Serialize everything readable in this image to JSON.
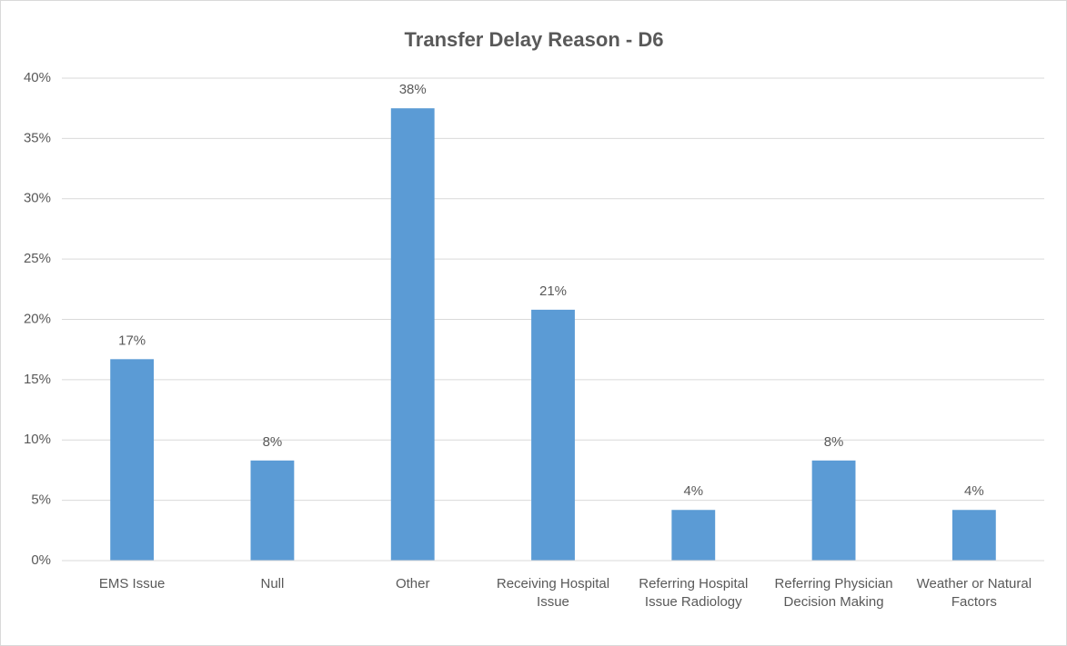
{
  "chart_data": {
    "type": "bar",
    "title": "Transfer Delay Reason - D6",
    "categories": [
      "EMS Issue",
      "Null",
      "Other",
      "Receiving Hospital Issue",
      "Referring Hospital Issue Radiology",
      "Referring Physician Decision Making",
      "Weather or Natural Factors"
    ],
    "values": [
      16.7,
      8.3,
      37.5,
      20.8,
      4.2,
      8.3,
      4.2
    ],
    "value_labels": [
      "17%",
      "8%",
      "38%",
      "21%",
      "4%",
      "8%",
      "4%"
    ],
    "color": "#5b9bd5",
    "ylim": [
      0,
      40
    ],
    "yticks": [
      {
        "value": 0,
        "label": "0%"
      },
      {
        "value": 5,
        "label": "5%"
      },
      {
        "value": 10,
        "label": "10%"
      },
      {
        "value": 15,
        "label": "15%"
      },
      {
        "value": 20,
        "label": "20%"
      },
      {
        "value": 25,
        "label": "25%"
      },
      {
        "value": 30,
        "label": "30%"
      },
      {
        "value": 35,
        "label": "35%"
      },
      {
        "value": 40,
        "label": "40%"
      }
    ],
    "grid": true
  }
}
